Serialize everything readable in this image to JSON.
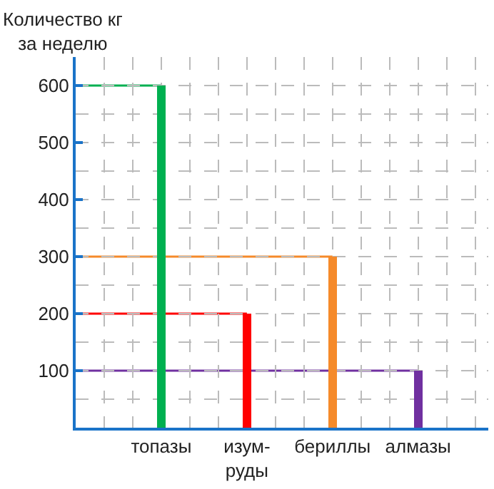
{
  "chart_data": {
    "type": "bar",
    "ylabel": "Количество кг\nза неделю",
    "categories": [
      "топазы",
      "изум-\nруды",
      "бериллы",
      "алмазы"
    ],
    "values": [
      600,
      200,
      300,
      100
    ],
    "colors": [
      "#00b050",
      "#ff0000",
      "#f58a2a",
      "#7030a0"
    ],
    "ylim": [
      0,
      650
    ],
    "yticks": [
      {
        "value": 0,
        "label": null
      },
      100,
      200,
      300,
      400,
      500,
      600
    ],
    "grid": true,
    "ref_lines": [
      {
        "axis": "y",
        "value": 600,
        "color": "#00b050"
      },
      {
        "axis": "y",
        "value": 200,
        "color": "#ff0000"
      },
      {
        "axis": "y",
        "value": 300,
        "color": "#f58a2a"
      },
      {
        "axis": "y",
        "value": 100,
        "color": "#7030a0"
      }
    ]
  }
}
